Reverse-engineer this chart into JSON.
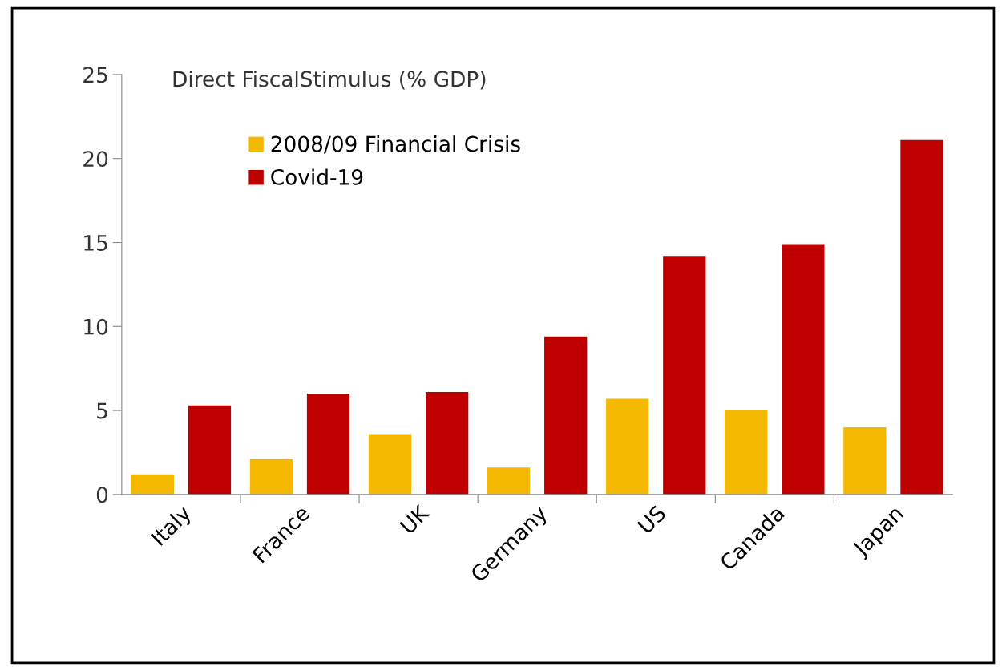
{
  "chart_data": {
    "type": "bar",
    "title": "Direct FiscalStimulus (% GDP)",
    "categories": [
      "Italy",
      "France",
      "UK",
      "Germany",
      "US",
      "Canada",
      "Japan"
    ],
    "series": [
      {
        "name": "2008/09 Financial Crisis",
        "color": "#f5b800",
        "values": [
          1.2,
          2.1,
          3.6,
          1.6,
          5.7,
          5.0,
          4.0
        ]
      },
      {
        "name": "Covid-19",
        "color": "#c00000",
        "values": [
          5.3,
          6.0,
          6.1,
          9.4,
          14.2,
          14.9,
          21.1
        ]
      }
    ],
    "ylim": [
      0,
      25
    ],
    "yticks": [
      0,
      5,
      10,
      15,
      20,
      25
    ],
    "grid": false,
    "legend": "top left"
  }
}
